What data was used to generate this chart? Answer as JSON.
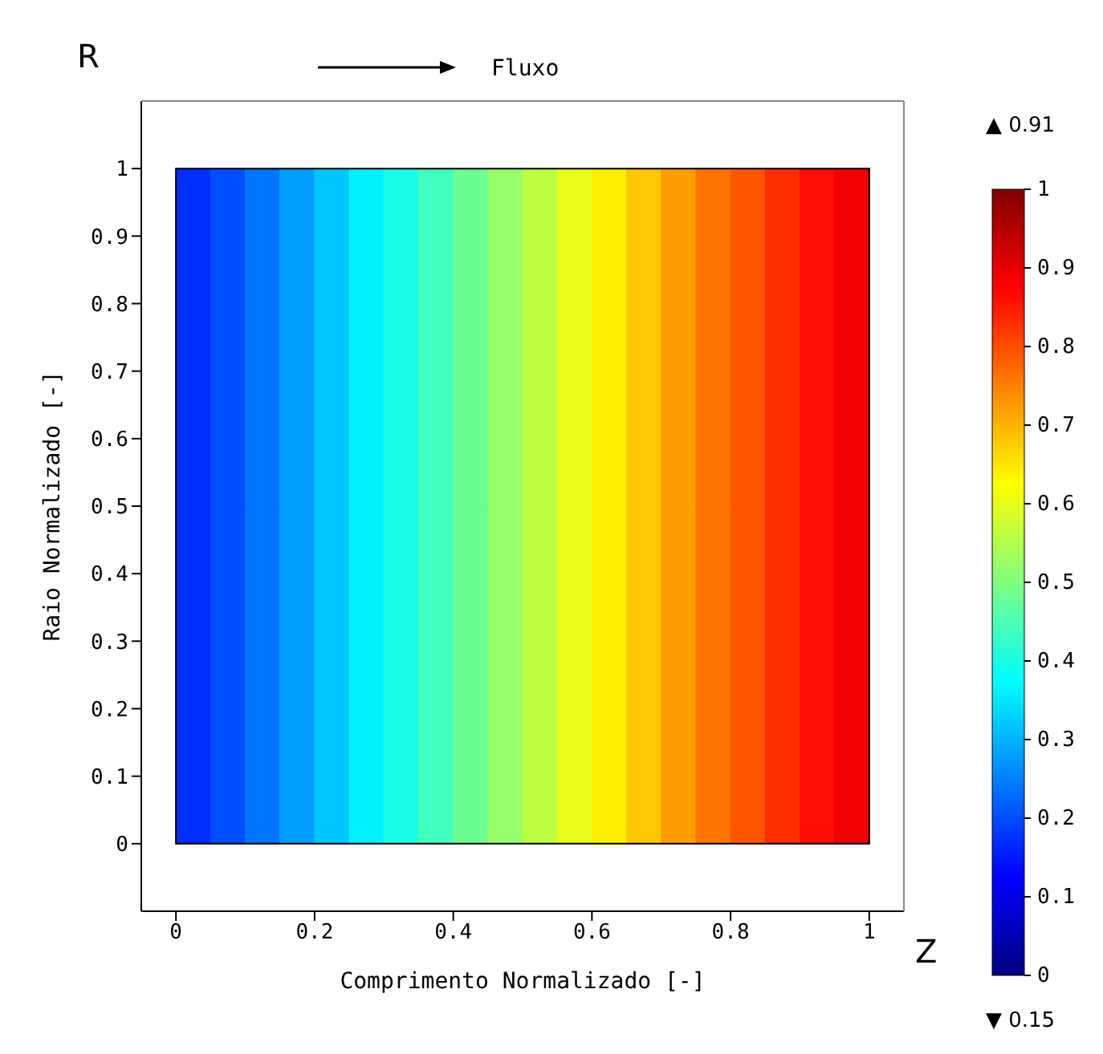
{
  "chart_data": {
    "type": "heatmap",
    "xlabel": "Comprimento Normalizado [-]",
    "ylabel": "Raio Normalizado [-]",
    "annotations": [
      "Fluxo",
      "R",
      "Z",
      "▲ 0.91",
      "▼ 0.15"
    ],
    "x": [
      0.025,
      0.075,
      0.125,
      0.175,
      0.225,
      0.275,
      0.325,
      0.375,
      0.425,
      0.475,
      0.525,
      0.575,
      0.625,
      0.675,
      0.725,
      0.775,
      0.825,
      0.875,
      0.925,
      0.975
    ],
    "y": [
      0.25,
      0.75
    ],
    "cells": [
      [
        0.17,
        0.2,
        0.24,
        0.28,
        0.32,
        0.36,
        0.4,
        0.44,
        0.48,
        0.52,
        0.56,
        0.6,
        0.64,
        0.68,
        0.72,
        0.76,
        0.79,
        0.83,
        0.86,
        0.89
      ],
      [
        0.17,
        0.2,
        0.24,
        0.28,
        0.32,
        0.36,
        0.4,
        0.44,
        0.48,
        0.52,
        0.56,
        0.6,
        0.64,
        0.68,
        0.72,
        0.76,
        0.79,
        0.83,
        0.86,
        0.89
      ]
    ],
    "clim": [
      0,
      1
    ],
    "cticks": [
      0,
      0.1,
      0.2,
      0.3,
      0.4,
      0.5,
      0.6,
      0.7,
      0.8,
      0.9,
      1
    ],
    "xlim": [
      -0.05,
      1.05
    ],
    "ylim": [
      -0.1,
      1.1
    ],
    "xticks": [
      0,
      0.2,
      0.4,
      0.6,
      0.8,
      1
    ],
    "yticks": [
      0,
      0.1,
      0.2,
      0.3,
      0.4,
      0.5,
      0.6,
      0.7,
      0.8,
      0.9,
      1
    ]
  }
}
